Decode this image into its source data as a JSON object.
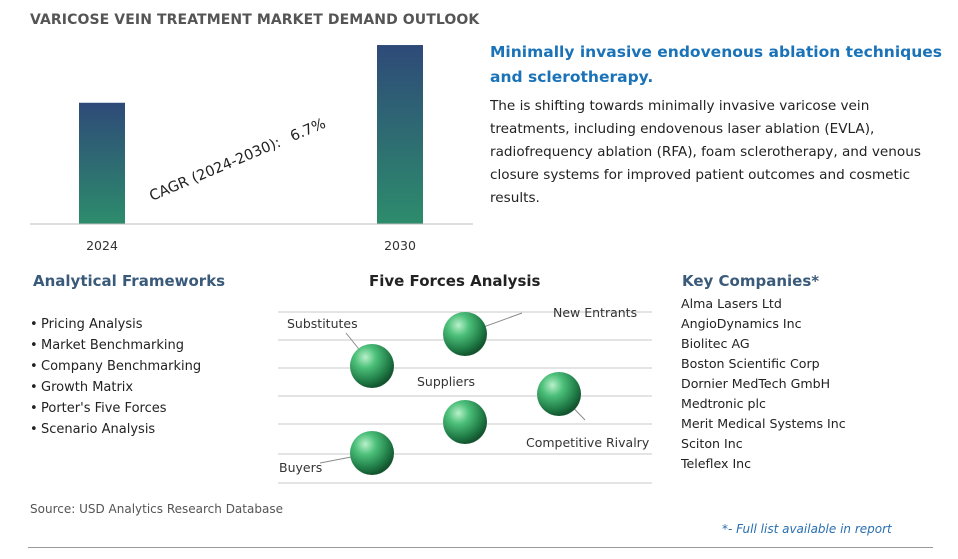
{
  "page_title": "VARICOSE VEIN TREATMENT MARKET DEMAND OUTLOOK",
  "chart_data": {
    "type": "bar",
    "categories": [
      "2024",
      "2030"
    ],
    "values": [
      1.0,
      1.476
    ],
    "ylim": [
      0,
      1.6
    ],
    "grid": false,
    "annotation": {
      "label": "CAGR (2024-2030):",
      "value": "6.7%"
    },
    "bar_gradient": [
      "#2d8c6c",
      "#2e4a78"
    ]
  },
  "insight": {
    "headline": "Minimally invasive endovenous ablation techniques and sclerotherapy.",
    "body": "The is shifting towards minimally invasive varicose vein treatments, including endovenous laser ablation (EVLA), radiofrequency ablation (RFA), foam sclerotherapy, and venous closure systems for improved patient outcomes and cosmetic results."
  },
  "frameworks": {
    "heading": "Analytical Frameworks",
    "items": [
      "Pricing Analysis",
      "Market Benchmarking",
      "Company Benchmarking",
      "Growth Matrix",
      "Porter's Five Forces",
      "Scenario Analysis"
    ]
  },
  "five_forces": {
    "heading": "Five Forces Analysis",
    "labels": {
      "substitutes": "Substitutes",
      "new_entrants": "New Entrants",
      "suppliers": "Suppliers",
      "competitive_rivalry": "Competitive Rivalry",
      "buyers": "Buyers"
    }
  },
  "companies": {
    "heading": "Key Companies*",
    "items": [
      "Alma Lasers Ltd",
      "AngioDynamics Inc",
      "Biolitec AG",
      "Boston Scientific Corp",
      "Dornier MedTech GmbH",
      "Medtronic plc",
      "Merit Medical Systems Inc",
      "Sciton Inc",
      "Teleflex Inc"
    ]
  },
  "source": "Source: USD Analytics Research Database",
  "footnote": "*- Full list available in report"
}
